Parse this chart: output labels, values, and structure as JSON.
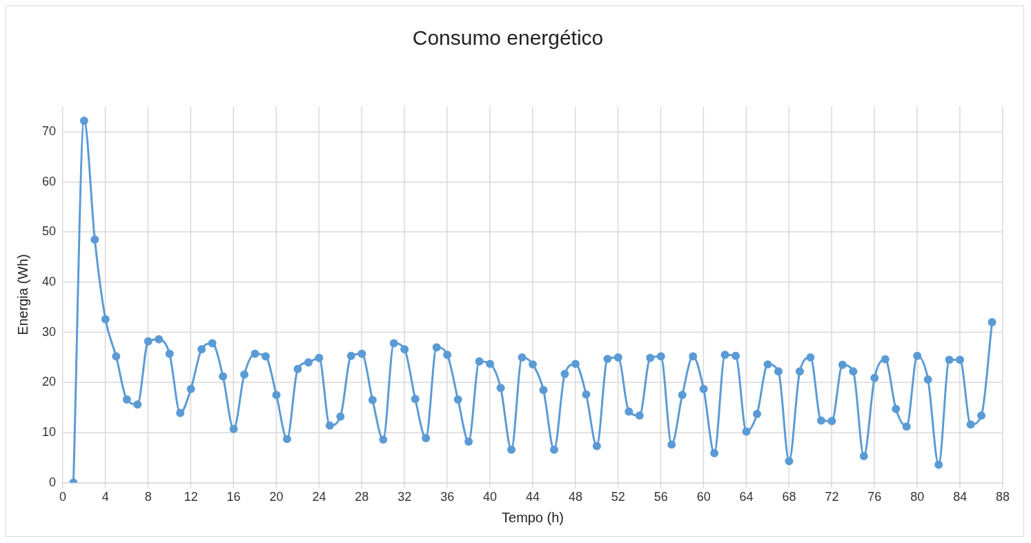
{
  "chart_data": {
    "type": "line",
    "title": "Consumo energético",
    "xlabel": "Tempo (h)",
    "ylabel": "Energia (Wh)",
    "x": [
      1,
      2,
      3,
      4,
      5,
      6,
      7,
      8,
      9,
      10,
      11,
      12,
      13,
      14,
      15,
      16,
      17,
      18,
      19,
      20,
      21,
      22,
      23,
      24,
      25,
      26,
      27,
      28,
      29,
      30,
      31,
      32,
      33,
      34,
      35,
      36,
      37,
      38,
      39,
      40,
      41,
      42,
      43,
      44,
      45,
      46,
      47,
      48,
      49,
      50,
      51,
      52,
      53,
      54,
      55,
      56,
      57,
      58,
      59,
      60,
      61,
      62,
      63,
      64,
      65,
      66,
      67,
      68,
      69,
      70,
      71,
      72,
      73,
      74,
      75,
      76,
      77,
      78,
      79,
      80,
      81,
      82,
      83,
      84,
      85,
      86,
      87
    ],
    "series": [
      {
        "color": "#5b9bd5",
        "values": [
          0,
          72.2,
          48.5,
          32.6,
          25.2,
          16.6,
          15.6,
          28.2,
          28.6,
          25.7,
          13.9,
          18.7,
          26.6,
          27.8,
          21.2,
          10.7,
          21.6,
          25.7,
          25.2,
          17.5,
          8.7,
          22.7,
          24.0,
          24.9,
          11.4,
          13.2,
          25.3,
          25.7,
          16.5,
          8.6,
          27.8,
          26.6,
          16.7,
          8.9,
          27.0,
          25.5,
          16.6,
          8.2,
          24.2,
          23.7,
          18.9,
          6.6,
          25.0,
          23.6,
          18.5,
          6.6,
          21.7,
          23.7,
          17.6,
          7.3,
          24.7,
          25.0,
          14.2,
          13.4,
          24.9,
          25.2,
          7.6,
          17.5,
          25.2,
          18.7,
          5.9,
          25.5,
          25.3,
          10.2,
          13.7,
          23.6,
          22.2,
          4.3,
          22.2,
          25.0,
          12.4,
          12.3,
          23.5,
          22.2,
          5.3,
          20.9,
          24.6,
          14.7,
          11.2,
          25.3,
          20.6,
          3.6,
          24.5,
          24.5,
          11.6,
          13.4,
          32.0
        ]
      }
    ],
    "xlim": [
      0,
      88
    ],
    "xticks": [
      0,
      4,
      8,
      12,
      16,
      20,
      24,
      28,
      32,
      36,
      40,
      44,
      48,
      52,
      56,
      60,
      64,
      68,
      72,
      76,
      80,
      84,
      88
    ],
    "ylim": [
      0,
      75
    ],
    "yticks": [
      0,
      10,
      20,
      30,
      40,
      50,
      60,
      70
    ],
    "grid": true,
    "legend": false,
    "marker": "circle",
    "line_style": "solid"
  }
}
